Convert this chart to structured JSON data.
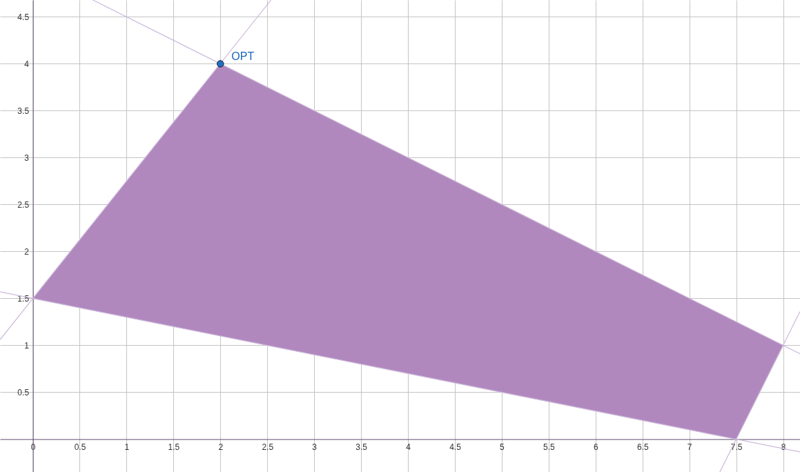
{
  "chart_data": {
    "type": "line",
    "xlim": [
      -0.35,
      8.18
    ],
    "ylim": [
      -0.35,
      4.68
    ],
    "xticks": [
      0,
      0.5,
      1,
      1.5,
      2,
      2.5,
      3,
      3.5,
      4,
      4.5,
      5,
      5.5,
      6,
      6.5,
      7,
      7.5,
      8
    ],
    "yticks": [
      0.5,
      1,
      1.5,
      2,
      2.5,
      3,
      3.5,
      4,
      4.5
    ],
    "grid": true,
    "series": [
      {
        "type": "area",
        "color": "#b088be",
        "x": [
          0,
          2,
          8,
          7.5,
          0
        ],
        "values": [
          1.5,
          4,
          1,
          0,
          1.5
        ]
      },
      {
        "color": "#cdb8da",
        "x": [
          -0.35,
          2.54
        ],
        "values": [
          1.06,
          4.68
        ]
      },
      {
        "color": "#cdb8da",
        "x": [
          0.64,
          8.18
        ],
        "values": [
          4.68,
          0.91
        ]
      },
      {
        "color": "#cdb8da",
        "x": [
          -0.35,
          8.18
        ],
        "values": [
          1.57,
          -0.136
        ]
      },
      {
        "color": "#cdb8da",
        "x": [
          7.325,
          8.18
        ],
        "values": [
          -0.35,
          1.36
        ]
      },
      {
        "type": "scatter",
        "color": "#1e6fc6",
        "x": [
          2
        ],
        "values": [
          4
        ]
      }
    ],
    "annotations": [
      {
        "text": "OPT",
        "x": 2,
        "y": 4
      }
    ]
  }
}
